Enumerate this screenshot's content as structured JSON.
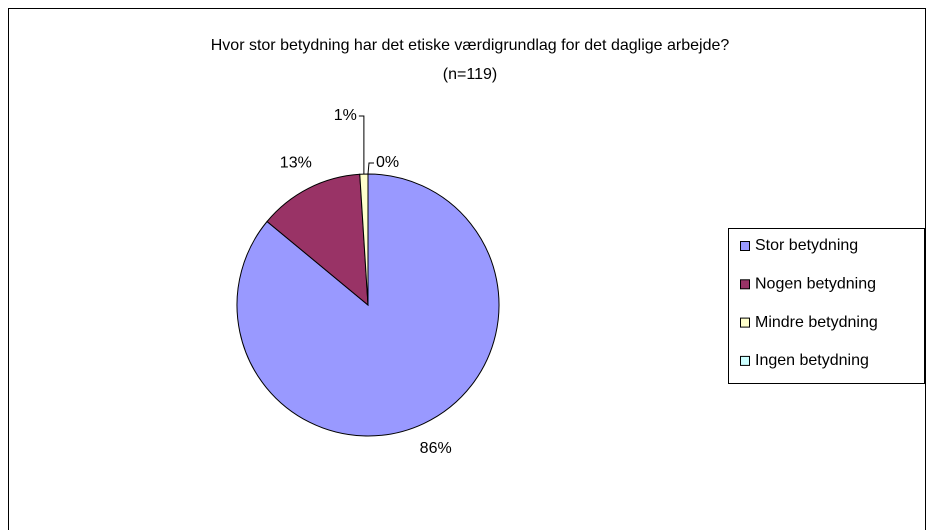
{
  "chart_data": {
    "type": "pie",
    "title": "Hvor stor betydning har det etiske værdigrundlag for det daglige arbejde?",
    "subtitle": "(n=119)",
    "categories": [
      "Stor betydning",
      "Nogen betydning",
      "Mindre betydning",
      "Ingen betydning"
    ],
    "values": [
      86,
      13,
      1,
      0
    ],
    "value_labels": [
      "86%",
      "13%",
      "1%",
      "0%"
    ],
    "colors": [
      "#9999ff",
      "#993366",
      "#ffffcc",
      "#ccffff"
    ],
    "legend": "right"
  }
}
